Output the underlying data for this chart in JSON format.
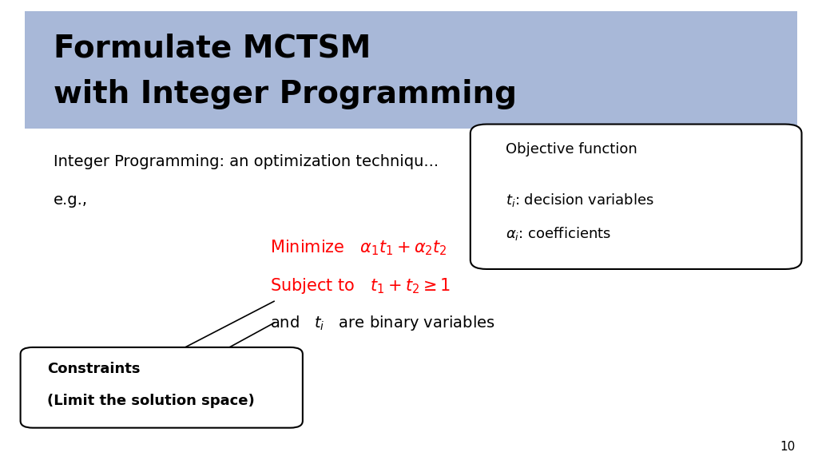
{
  "title_line1": "Formulate MCTSM",
  "title_line2": "with Integer Programming",
  "title_bg_color": "#a8b8d8",
  "title_text_color": "#000000",
  "body_bg_color": "#ffffff",
  "intro_text": "Integer Programming: an optimization techniqu...",
  "eg_text": "e.g.,",
  "red_color": "#FF0000",
  "black_color": "#000000",
  "obj_box_title": "Objective function",
  "constraints_line1": "Constraints",
  "constraints_line2": "(Limit the solution space)",
  "page_number": "10"
}
